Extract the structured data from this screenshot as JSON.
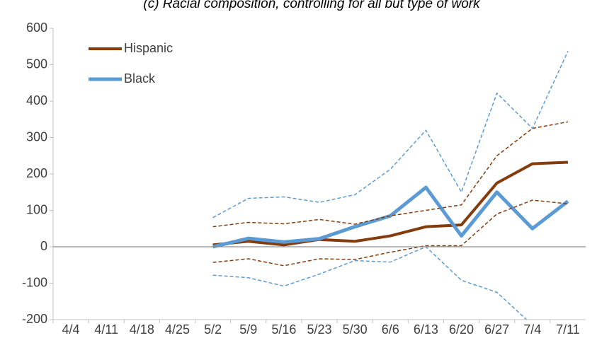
{
  "chart_data": {
    "type": "line",
    "title": "(c) Racial composition, controlling for all but type of work",
    "categories": [
      "4/4",
      "4/11",
      "4/18",
      "4/25",
      "5/2",
      "5/9",
      "5/16",
      "5/23",
      "5/30",
      "6/6",
      "6/13",
      "6/20",
      "6/27",
      "7/4",
      "7/11"
    ],
    "series": [
      {
        "name": "Hispanic",
        "color": "#843c0c",
        "width": 4,
        "values": [
          null,
          null,
          null,
          null,
          5,
          15,
          5,
          20,
          15,
          30,
          55,
          60,
          175,
          228,
          232
        ]
      },
      {
        "name": "Black",
        "color": "#5b9bd5",
        "width": 5,
        "values": [
          null,
          null,
          null,
          null,
          0,
          23,
          13,
          22,
          55,
          85,
          163,
          30,
          150,
          50,
          125
        ]
      },
      {
        "color": "#843c0c",
        "dashed": true,
        "values": [
          null,
          null,
          null,
          null,
          55,
          67,
          63,
          75,
          62,
          85,
          100,
          115,
          250,
          325,
          343
        ]
      },
      {
        "color": "#843c0c",
        "dashed": true,
        "values": [
          null,
          null,
          null,
          null,
          -43,
          -33,
          -52,
          -33,
          -35,
          -15,
          3,
          3,
          90,
          128,
          118
        ]
      },
      {
        "color": "#5b9bd5",
        "dashed": true,
        "values": [
          null,
          null,
          null,
          null,
          80,
          133,
          137,
          122,
          143,
          213,
          320,
          150,
          422,
          325,
          537
        ]
      },
      {
        "color": "#5b9bd5",
        "dashed": true,
        "values": [
          null,
          null,
          null,
          null,
          -78,
          -85,
          -108,
          -75,
          -38,
          -42,
          0,
          -92,
          -125,
          -215,
          null
        ]
      }
    ],
    "ylim": [
      -200,
      600
    ],
    "yticks": [
      -200,
      -100,
      0,
      100,
      200,
      300,
      400,
      500,
      600
    ],
    "legend": "top-left"
  }
}
